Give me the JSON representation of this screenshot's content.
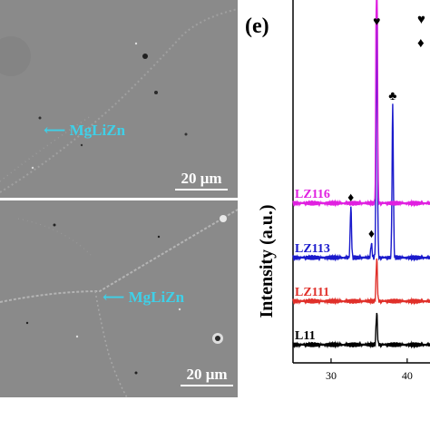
{
  "figure": {
    "panel_label": "(e)",
    "sem_top": {
      "phase_label": "MgLiZn",
      "scale_text": "20 μm"
    },
    "sem_bottom": {
      "phase_label": "MgLiZn",
      "scale_text": "20 μm"
    },
    "markers": {
      "heart": "♥",
      "diamond": "♦",
      "club": "♣"
    }
  },
  "chart_data": {
    "type": "line",
    "ylabel": "Intensity (a.u.)",
    "xlabel": "",
    "x_ticks": [
      30,
      40
    ],
    "xlim": [
      25,
      43
    ],
    "series": [
      {
        "name": "L11",
        "color": "#000000",
        "baseline": 0.05,
        "peaks": [
          {
            "x": 36.0,
            "h": 0.09
          }
        ]
      },
      {
        "name": "LZ111",
        "color": "#e0302a",
        "baseline": 0.17,
        "peaks": [
          {
            "x": 36.0,
            "h": 0.12
          }
        ]
      },
      {
        "name": "LZ113",
        "color": "#1a1acc",
        "baseline": 0.29,
        "peaks": [
          {
            "x": 32.6,
            "h": 0.14
          },
          {
            "x": 35.3,
            "h": 0.04
          },
          {
            "x": 36.0,
            "h": 0.7
          },
          {
            "x": 38.1,
            "h": 0.42
          }
        ]
      },
      {
        "name": "LZ116",
        "color": "#e020e0",
        "baseline": 0.44,
        "peaks": [
          {
            "x": 36.0,
            "h": 0.98
          }
        ]
      }
    ],
    "peak_markers": [
      {
        "symbol": "♥",
        "x": 36.0
      },
      {
        "symbol": "♦",
        "x": 32.6
      },
      {
        "symbol": "♦",
        "x": 35.3
      },
      {
        "symbol": "♣",
        "x": 38.1
      }
    ],
    "colors": {
      "axis": "#000000",
      "pink": "#e020e0",
      "blue": "#1a1acc",
      "red": "#e0302a"
    }
  }
}
